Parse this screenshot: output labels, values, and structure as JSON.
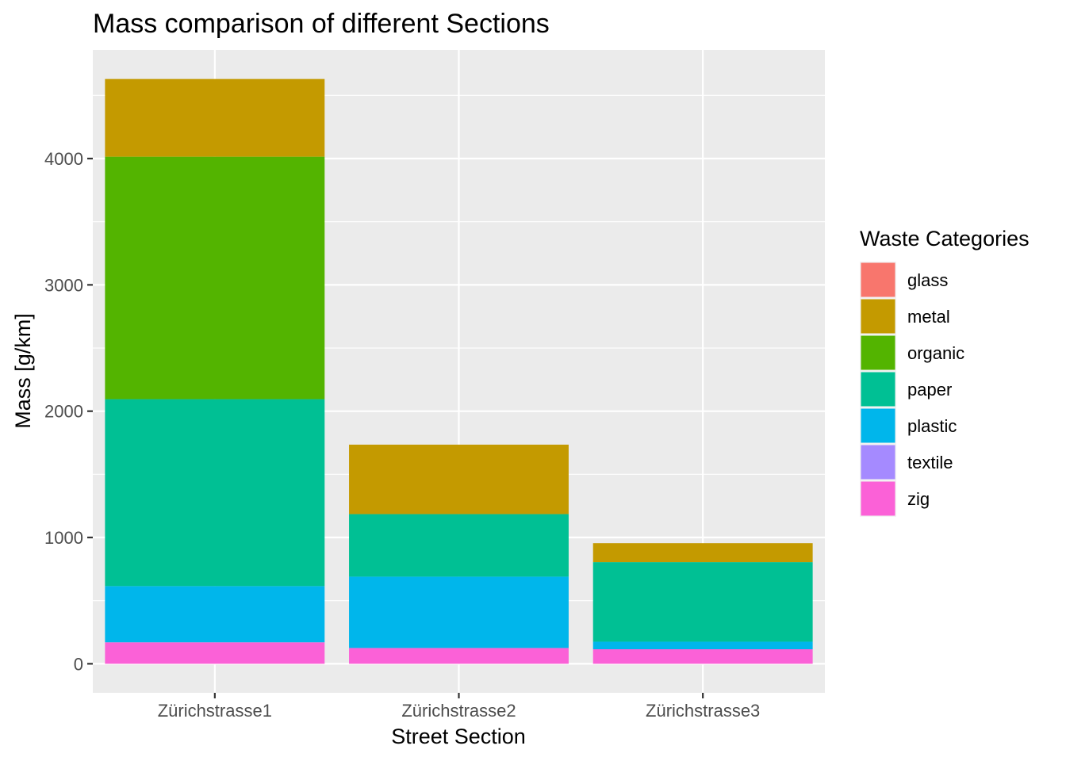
{
  "chart_data": {
    "type": "bar",
    "stacked": true,
    "title": "Mass comparison of different Sections",
    "xlabel": "Street Section",
    "ylabel": "Mass [g/km]",
    "categories": [
      "Zürichstrasse1",
      "Zürichstrasse2",
      "Zürichstrasse3"
    ],
    "ylim": [
      -230,
      4860
    ],
    "yticks": [
      0,
      1000,
      2000,
      3000,
      4000
    ],
    "grid": true,
    "legend": {
      "title": "Waste Categories",
      "position": "right"
    },
    "series": [
      {
        "name": "glass",
        "color": "#F8766D",
        "values": [
          0,
          0,
          0
        ]
      },
      {
        "name": "metal",
        "color": "#C49A00",
        "values": [
          615,
          550,
          150
        ]
      },
      {
        "name": "organic",
        "color": "#53B400",
        "values": [
          1920,
          0,
          0
        ]
      },
      {
        "name": "paper",
        "color": "#00C094",
        "values": [
          1480,
          495,
          630
        ]
      },
      {
        "name": "plastic",
        "color": "#00B6EB",
        "values": [
          445,
          565,
          60
        ]
      },
      {
        "name": "textile",
        "color": "#A58AFF",
        "values": [
          0,
          0,
          0
        ]
      },
      {
        "name": "zig",
        "color": "#FB61D7",
        "values": [
          170,
          125,
          115
        ]
      }
    ],
    "stack_order_bottom_to_top": [
      "zig",
      "textile",
      "plastic",
      "paper",
      "organic",
      "metal",
      "glass"
    ]
  }
}
